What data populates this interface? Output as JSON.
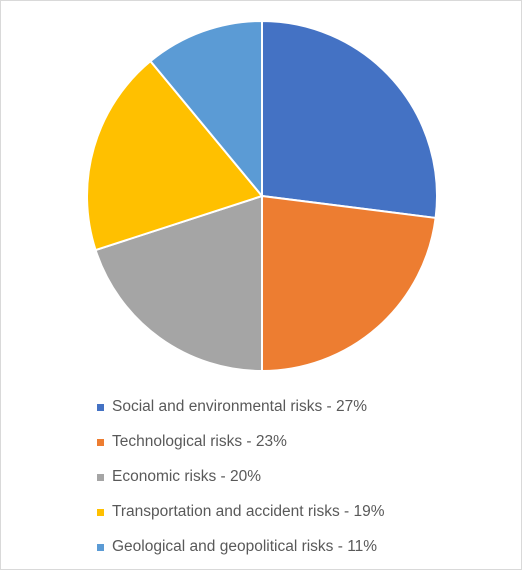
{
  "chart_data": {
    "type": "pie",
    "title": "",
    "legend_position": "bottom",
    "start_angle": "12 o'clock, clockwise",
    "slices": [
      {
        "label": "Social and environmental risks - 27%",
        "value": 27,
        "color": "#4472C4"
      },
      {
        "label": "Technological risks - 23%",
        "value": 23,
        "color": "#ED7D31"
      },
      {
        "label": "Economic risks - 20%",
        "value": 20,
        "color": "#A5A5A5"
      },
      {
        "label": "Transportation and accident risks - 19%",
        "value": 19,
        "color": "#FFC000"
      },
      {
        "label": "Geological and geopolitical risks - 11%",
        "value": 11,
        "color": "#5B9BD5"
      }
    ]
  }
}
